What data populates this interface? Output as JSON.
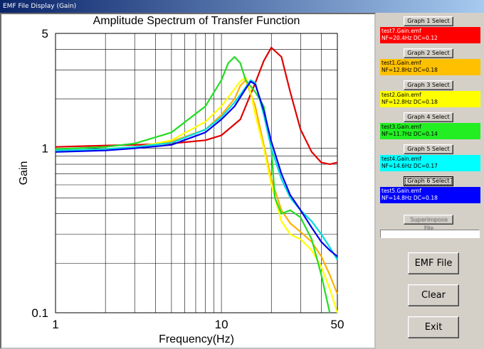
{
  "window": {
    "title": "EMF File Display (Gain)"
  },
  "chart_data": {
    "type": "line",
    "title": "Amplitude Spectrum of Transfer Function",
    "xlabel": "Frequency(Hz)",
    "ylabel": "Gain",
    "xscale": "log",
    "yscale": "log",
    "xlim": [
      1,
      50
    ],
    "ylim": [
      0.1,
      5
    ],
    "xticks": [
      {
        "value": 1,
        "label": "1"
      },
      {
        "value": 10,
        "label": "10"
      },
      {
        "value": 50,
        "label": "50"
      }
    ],
    "yticks": [
      {
        "value": 0.1,
        "label": "0.1"
      },
      {
        "value": 1,
        "label": "1"
      },
      {
        "value": 5,
        "label": "5"
      }
    ],
    "grid": true,
    "legend": "none",
    "series": [
      {
        "name": "test7.Gain.emf",
        "color": "#e00000",
        "x": [
          1,
          2,
          3,
          5,
          8,
          10,
          13,
          16,
          18,
          20,
          23,
          26,
          30,
          35,
          40,
          45,
          50
        ],
        "y": [
          1.02,
          1.04,
          1.05,
          1.07,
          1.12,
          1.2,
          1.5,
          2.5,
          3.4,
          4.1,
          3.6,
          2.2,
          1.3,
          0.95,
          0.82,
          0.8,
          0.82
        ]
      },
      {
        "name": "test1.Gain.emf",
        "color": "#ffb000",
        "x": [
          1,
          2,
          3,
          5,
          8,
          10,
          12,
          13,
          14,
          16,
          18,
          20,
          23,
          26,
          30,
          35,
          40,
          45,
          50
        ],
        "y": [
          0.97,
          0.99,
          1.02,
          1.1,
          1.3,
          1.6,
          2.0,
          2.4,
          2.6,
          1.8,
          1.05,
          0.65,
          0.42,
          0.35,
          0.31,
          0.27,
          0.22,
          0.17,
          0.13
        ]
      },
      {
        "name": "test2.Gain.emf",
        "color": "#ffff00",
        "x": [
          1,
          2,
          3,
          5,
          8,
          10,
          12,
          13,
          14,
          15,
          16,
          18,
          20,
          23,
          26,
          30,
          35,
          40,
          45,
          50
        ],
        "y": [
          0.96,
          0.98,
          1.01,
          1.12,
          1.45,
          1.8,
          2.3,
          2.55,
          2.7,
          2.2,
          1.6,
          1.0,
          0.6,
          0.36,
          0.3,
          0.28,
          0.24,
          0.19,
          0.14,
          0.1
        ]
      },
      {
        "name": "test3.Gain.emf",
        "color": "#22dd22",
        "x": [
          1,
          2,
          3,
          5,
          8,
          10,
          11,
          12,
          13,
          14,
          16,
          18,
          20,
          21,
          23,
          26,
          30,
          35,
          40,
          45
        ],
        "y": [
          0.99,
          1.02,
          1.07,
          1.25,
          1.8,
          2.6,
          3.3,
          3.6,
          3.3,
          2.6,
          2.2,
          1.8,
          1.0,
          0.5,
          0.4,
          0.42,
          0.38,
          0.28,
          0.17,
          0.1
        ]
      },
      {
        "name": "test4.Gain.emf",
        "color": "#00dddd",
        "x": [
          1,
          2,
          3,
          5,
          8,
          10,
          12,
          14,
          15,
          16,
          18,
          20,
          23,
          26,
          30,
          35,
          40,
          45,
          50
        ],
        "y": [
          0.97,
          0.99,
          1.02,
          1.08,
          1.3,
          1.55,
          1.9,
          2.35,
          2.6,
          2.5,
          1.6,
          1.0,
          0.65,
          0.5,
          0.42,
          0.36,
          0.3,
          0.25,
          0.21
        ]
      },
      {
        "name": "test5.Gain.emf",
        "color": "#0000ee",
        "x": [
          1,
          2,
          3,
          5,
          8,
          10,
          12,
          14,
          15,
          16,
          18,
          20,
          23,
          26,
          30,
          35,
          40,
          45,
          50
        ],
        "y": [
          0.95,
          0.97,
          1.0,
          1.05,
          1.25,
          1.5,
          1.8,
          2.3,
          2.55,
          2.45,
          1.7,
          1.1,
          0.7,
          0.52,
          0.42,
          0.33,
          0.27,
          0.24,
          0.22
        ]
      }
    ]
  },
  "graphs": [
    {
      "button": "Graph 1 Select",
      "line1": "test7.Gain.emf",
      "line2": "NF=20.4Hz  DC=0.12",
      "bg": "#ff0000",
      "fg": "#ffffff",
      "selected": false
    },
    {
      "button": "Graph 2 Select",
      "line1": "test1.Gain.emf",
      "line2": "NF=12.8Hz  DC=0.18",
      "bg": "#ffc000",
      "fg": "#000000",
      "selected": false
    },
    {
      "button": "Graph 3 Select",
      "line1": "test2.Gain.emf",
      "line2": "NF=12.8Hz  DC=0.18",
      "bg": "#ffff00",
      "fg": "#000000",
      "selected": false
    },
    {
      "button": "Graph 4 Select",
      "line1": "test3.Gain.emf",
      "line2": "NF=11.7Hz  DC=0.14",
      "bg": "#22ee22",
      "fg": "#000000",
      "selected": false
    },
    {
      "button": "Graph 5 Select",
      "line1": "test4.Gain.emf",
      "line2": "NF=14.6Hz  DC=0.17",
      "bg": "#00ffff",
      "fg": "#000000",
      "selected": false
    },
    {
      "button": "Graph 6 Select",
      "line1": "test5.Gain.emf",
      "line2": "NF=14.8Hz  DC=0.18",
      "bg": "#0000ff",
      "fg": "#ffffff",
      "selected": true
    }
  ],
  "superimpose_label": "Superimpose File",
  "emf_file_label": "EMF File",
  "clear_label": "Clear",
  "exit_label": "Exit"
}
